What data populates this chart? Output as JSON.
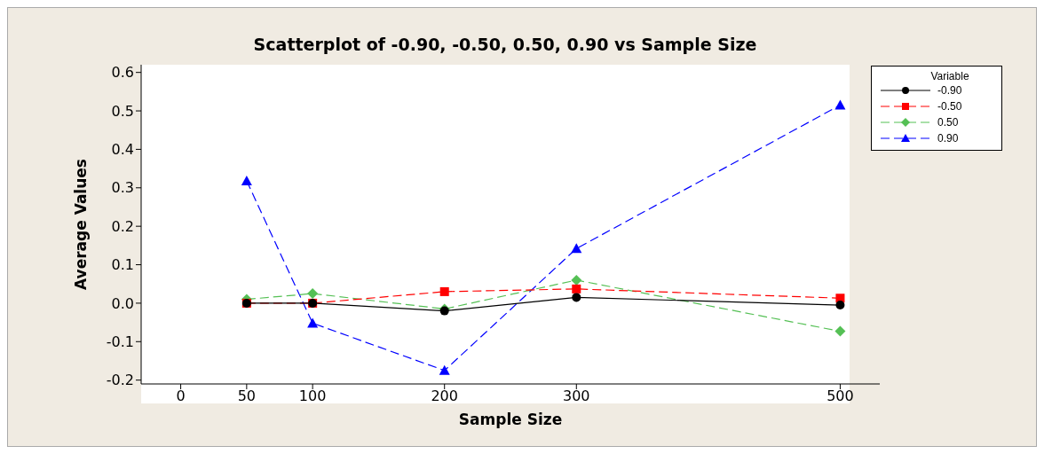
{
  "chart_data": {
    "type": "line",
    "title": "Scatterplot of -0.90, -0.50, 0.50, 0.90 vs Sample Size",
    "xlabel": "Sample Size",
    "ylabel": "Average Values",
    "legend_title": "Variable",
    "x": [
      50,
      100,
      200,
      300,
      500
    ],
    "series": [
      {
        "name": "-0.90",
        "color": "#000000",
        "marker": "circle",
        "line_style": "solid",
        "values": [
          0.0,
          0.0,
          -0.02,
          0.015,
          -0.005
        ]
      },
      {
        "name": "-0.50",
        "color": "#ff0000",
        "marker": "square",
        "line_style": "dashed",
        "values": [
          0.0,
          0.0,
          0.03,
          0.037,
          0.013
        ]
      },
      {
        "name": "0.50",
        "color": "#55c055",
        "marker": "diamond",
        "line_style": "dashed",
        "values": [
          0.01,
          0.025,
          -0.015,
          0.06,
          -0.073
        ]
      },
      {
        "name": "0.90",
        "color": "#0000ff",
        "marker": "triangle",
        "line_style": "dashed",
        "values": [
          0.318,
          -0.052,
          -0.175,
          0.142,
          0.515
        ]
      }
    ],
    "xlim": [
      -30,
      530
    ],
    "xticks": [
      0,
      50,
      100,
      200,
      300,
      500
    ],
    "ylim": [
      -0.21,
      0.62
    ],
    "yticks": [
      -0.2,
      -0.1,
      {
        "value": 0,
        "label": "0.0"
      },
      0.1,
      0.2,
      0.3,
      0.4,
      0.5,
      0.6
    ],
    "grid": false,
    "legend": "right"
  }
}
